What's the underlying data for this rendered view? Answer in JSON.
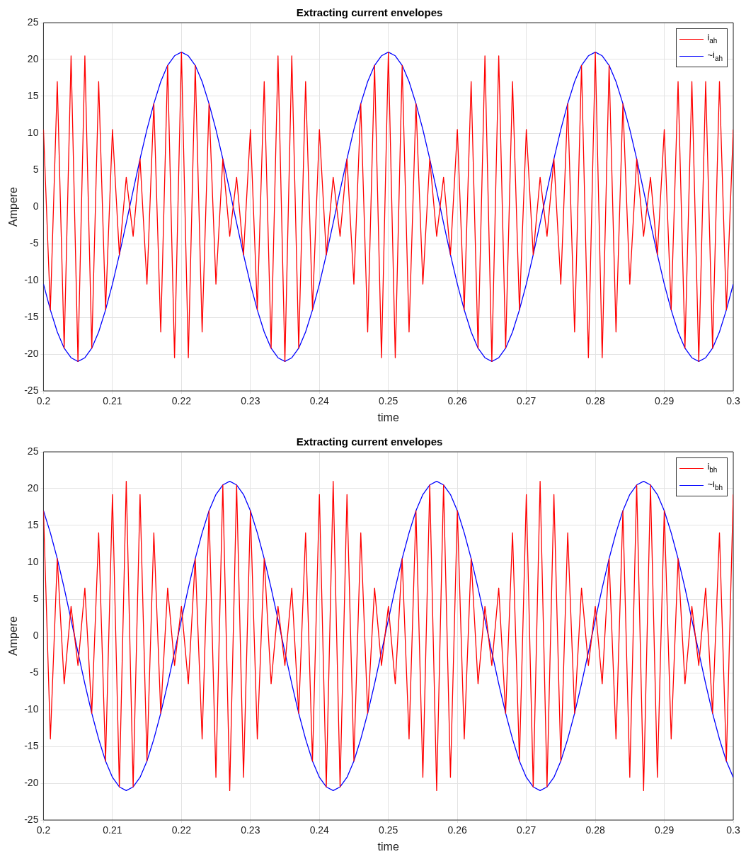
{
  "chart_data": [
    {
      "type": "line",
      "title": "Extracting current envelopes",
      "xlabel": "time",
      "ylabel": "Ampere",
      "xlim": [
        0.2,
        0.3
      ],
      "ylim": [
        -25,
        25
      ],
      "xticks": [
        0.2,
        0.21,
        0.22,
        0.23,
        0.24,
        0.25,
        0.26,
        0.27,
        0.28,
        0.29,
        0.3
      ],
      "yticks": [
        -25,
        -20,
        -15,
        -10,
        -5,
        0,
        5,
        10,
        15,
        20,
        25
      ],
      "grid": true,
      "legend": "top right",
      "x": [
        0.2,
        0.201,
        0.202,
        0.203,
        0.204,
        0.205,
        0.206,
        0.207,
        0.208,
        0.209,
        0.21,
        0.211,
        0.212,
        0.213,
        0.214,
        0.215,
        0.216,
        0.217,
        0.218,
        0.219,
        0.22,
        0.221,
        0.222,
        0.223,
        0.224,
        0.225,
        0.226,
        0.227,
        0.228,
        0.229,
        0.23,
        0.231,
        0.232,
        0.233,
        0.234,
        0.235,
        0.236,
        0.237,
        0.238,
        0.239,
        0.24,
        0.241,
        0.242,
        0.243,
        0.244,
        0.245,
        0.246,
        0.247,
        0.248,
        0.249,
        0.25,
        0.251,
        0.252,
        0.253,
        0.254,
        0.255,
        0.256,
        0.257,
        0.258,
        0.259,
        0.26,
        0.261,
        0.262,
        0.263,
        0.264,
        0.265,
        0.266,
        0.267,
        0.268,
        0.269,
        0.27,
        0.271,
        0.272,
        0.273,
        0.274,
        0.275,
        0.276,
        0.277,
        0.278,
        0.279,
        0.28,
        0.281,
        0.282,
        0.283,
        0.284,
        0.285,
        0.286,
        0.287,
        0.288,
        0.289,
        0.29,
        0.291,
        0.292,
        0.293,
        0.294,
        0.295,
        0.296,
        0.297,
        0.298,
        0.299,
        0.3
      ],
      "series": [
        {
          "name": "i$_{ah}$",
          "color": "#ff0000",
          "values": [
            10.5,
            -14,
            17,
            -19.2,
            20.5,
            -21,
            20.5,
            -19.2,
            17,
            -14,
            10.5,
            -6.5,
            4,
            -4,
            6.5,
            -10.5,
            14,
            -17,
            19.2,
            -20.5,
            21,
            -20.5,
            19.2,
            -17,
            14,
            -10.5,
            6.5,
            -4,
            4,
            -6.5,
            10.5,
            -14,
            17,
            -19.2,
            20.5,
            -21,
            20.5,
            -19.2,
            17,
            -14,
            10.5,
            -6.5,
            4,
            -4,
            6.5,
            -10.5,
            14,
            -17,
            19.2,
            -20.5,
            21,
            -20.5,
            19.2,
            -17,
            14,
            -10.5,
            6.5,
            -4,
            4,
            -6.5,
            10.5,
            -14,
            17,
            -19.2,
            20.5,
            -21,
            20.5,
            -19.2,
            17,
            -14,
            10.5,
            -6.5,
            4,
            -4,
            6.5,
            -10.5,
            14,
            -17,
            19.2,
            -20.5,
            21,
            -20.5,
            19.2,
            -17,
            14,
            -10.5,
            6.5,
            -4,
            4,
            -6.5,
            10.5,
            -14,
            17,
            -19.2,
            17,
            -21,
            17,
            -19.2,
            17,
            -14,
            10.5
          ]
        },
        {
          "name": "~i$_{ah}$",
          "color": "#0000ff",
          "values": [
            -10.5,
            -14,
            -17,
            -19.2,
            -20.5,
            -21,
            -20.5,
            -19.2,
            -17,
            -14,
            -10.5,
            -6.5,
            -2.2,
            2.2,
            6.5,
            10.5,
            14,
            17,
            19.2,
            20.5,
            21,
            20.5,
            19.2,
            17,
            14,
            10.5,
            6.5,
            2.2,
            -2.2,
            -6.5,
            -10.5,
            -14,
            -17,
            -19.2,
            -20.5,
            -21,
            -20.5,
            -19.2,
            -17,
            -14,
            -10.5,
            -6.5,
            -2.2,
            2.2,
            6.5,
            10.5,
            14,
            17,
            19.2,
            20.5,
            21,
            20.5,
            19.2,
            17,
            14,
            10.5,
            6.5,
            2.2,
            -2.2,
            -6.5,
            -10.5,
            -14,
            -17,
            -19.2,
            -20.5,
            -21,
            -20.5,
            -19.2,
            -17,
            -14,
            -10.5,
            -6.5,
            -2.2,
            2.2,
            6.5,
            10.5,
            14,
            17,
            19.2,
            20.5,
            21,
            20.5,
            19.2,
            17,
            14,
            10.5,
            6.5,
            2.2,
            -2.2,
            -6.5,
            -10.5,
            -14,
            -17,
            -19.2,
            -20.5,
            -21,
            -20.5,
            -19.2,
            -17,
            -14,
            -10.5
          ]
        }
      ]
    },
    {
      "type": "line",
      "title": "Extracting current envelopes",
      "xlabel": "time",
      "ylabel": "Ampere",
      "xlim": [
        0.2,
        0.3
      ],
      "ylim": [
        -25,
        25
      ],
      "xticks": [
        0.2,
        0.21,
        0.22,
        0.23,
        0.24,
        0.25,
        0.26,
        0.27,
        0.28,
        0.29,
        0.3
      ],
      "yticks": [
        -25,
        -20,
        -15,
        -10,
        -5,
        0,
        5,
        10,
        15,
        20,
        25
      ],
      "grid": true,
      "legend": "top right",
      "x": [
        0.2,
        0.201,
        0.202,
        0.203,
        0.204,
        0.205,
        0.206,
        0.207,
        0.208,
        0.209,
        0.21,
        0.211,
        0.212,
        0.213,
        0.214,
        0.215,
        0.216,
        0.217,
        0.218,
        0.219,
        0.22,
        0.221,
        0.222,
        0.223,
        0.224,
        0.225,
        0.226,
        0.227,
        0.228,
        0.229,
        0.23,
        0.231,
        0.232,
        0.233,
        0.234,
        0.235,
        0.236,
        0.237,
        0.238,
        0.239,
        0.24,
        0.241,
        0.242,
        0.243,
        0.244,
        0.245,
        0.246,
        0.247,
        0.248,
        0.249,
        0.25,
        0.251,
        0.252,
        0.253,
        0.254,
        0.255,
        0.256,
        0.257,
        0.258,
        0.259,
        0.26,
        0.261,
        0.262,
        0.263,
        0.264,
        0.265,
        0.266,
        0.267,
        0.268,
        0.269,
        0.27,
        0.271,
        0.272,
        0.273,
        0.274,
        0.275,
        0.276,
        0.277,
        0.278,
        0.279,
        0.28,
        0.281,
        0.282,
        0.283,
        0.284,
        0.285,
        0.286,
        0.287,
        0.288,
        0.289,
        0.29,
        0.291,
        0.292,
        0.293,
        0.294,
        0.295,
        0.296,
        0.297,
        0.298,
        0.299,
        0.3
      ],
      "series": [
        {
          "name": "i$_{bh}$",
          "color": "#ff0000",
          "values": [
            17,
            -14,
            10.5,
            -6.5,
            4,
            -4,
            6.5,
            -10.5,
            14,
            -17,
            19.2,
            -20.5,
            21,
            -20.5,
            19.2,
            -17,
            14,
            -10.5,
            6.5,
            -4,
            4,
            -6.5,
            10.5,
            -14,
            17,
            -19.2,
            20.5,
            -21,
            20.5,
            -19.2,
            17,
            -14,
            10.5,
            -6.5,
            4,
            -4,
            6.5,
            -10.5,
            14,
            -17,
            19.2,
            -20.5,
            21,
            -20.5,
            19.2,
            -17,
            14,
            -10.5,
            6.5,
            -4,
            4,
            -6.5,
            10.5,
            -14,
            17,
            -19.2,
            20.5,
            -21,
            20.5,
            -19.2,
            17,
            -14,
            10.5,
            -6.5,
            4,
            -4,
            6.5,
            -10.5,
            14,
            -17,
            19.2,
            -20.5,
            21,
            -20.5,
            19.2,
            -17,
            14,
            -10.5,
            6.5,
            -4,
            4,
            -6.5,
            10.5,
            -14,
            17,
            -19.2,
            20.5,
            -21,
            20.5,
            -19.2,
            17,
            -14,
            10.5,
            -6.5,
            4,
            -4,
            6.5,
            -10.5,
            14,
            -17,
            19.2
          ]
        },
        {
          "name": "~i$_{bh}$",
          "color": "#0000ff",
          "values": [
            17,
            14,
            10.5,
            6.5,
            2.2,
            -2.2,
            -6.5,
            -10.5,
            -14,
            -17,
            -19.2,
            -20.5,
            -21,
            -20.5,
            -19.2,
            -17,
            -14,
            -10.5,
            -6.5,
            -2.2,
            2.2,
            6.5,
            10.5,
            14,
            17,
            19.2,
            20.5,
            21,
            20.5,
            19.2,
            17,
            14,
            10.5,
            6.5,
            2.2,
            -2.2,
            -6.5,
            -10.5,
            -14,
            -17,
            -19.2,
            -20.5,
            -21,
            -20.5,
            -19.2,
            -17,
            -14,
            -10.5,
            -6.5,
            -2.2,
            2.2,
            6.5,
            10.5,
            14,
            17,
            19.2,
            20.5,
            21,
            20.5,
            19.2,
            17,
            14,
            10.5,
            6.5,
            2.2,
            -2.2,
            -6.5,
            -10.5,
            -14,
            -17,
            -19.2,
            -20.5,
            -21,
            -20.5,
            -19.2,
            -17,
            -14,
            -10.5,
            -6.5,
            -2.2,
            2.2,
            6.5,
            10.5,
            14,
            17,
            19.2,
            20.5,
            21,
            20.5,
            19.2,
            17,
            14,
            10.5,
            6.5,
            2.2,
            -2.2,
            -6.5,
            -10.5,
            -14,
            -17,
            -19.2
          ]
        }
      ]
    }
  ]
}
